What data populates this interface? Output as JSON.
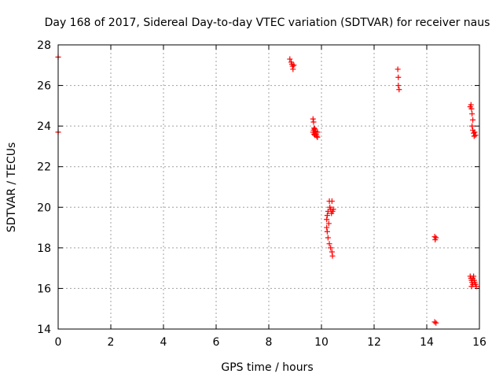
{
  "chart_data": {
    "type": "scatter",
    "title": "Day 168 of 2017, Sidereal Day-to-day VTEC variation (SDTVAR) for receiver naus",
    "xlabel": "GPS time / hours",
    "ylabel": "SDTVAR / TECUs",
    "xlim": [
      0,
      16
    ],
    "ylim": [
      14,
      28
    ],
    "xticks": [
      0,
      2,
      4,
      6,
      8,
      10,
      12,
      14,
      16
    ],
    "yticks": [
      14,
      16,
      18,
      20,
      22,
      24,
      26,
      28
    ],
    "grid": true,
    "marker": "+",
    "color": "#ff0000",
    "points": [
      [
        0.0,
        27.4
      ],
      [
        0.0,
        23.7
      ],
      [
        8.8,
        27.3
      ],
      [
        8.85,
        27.15
      ],
      [
        8.88,
        27.05
      ],
      [
        8.9,
        26.95
      ],
      [
        8.92,
        26.8
      ],
      [
        8.95,
        27.0
      ],
      [
        9.68,
        24.35
      ],
      [
        9.7,
        24.2
      ],
      [
        9.72,
        23.9
      ],
      [
        9.7,
        23.8
      ],
      [
        9.68,
        23.7
      ],
      [
        9.72,
        23.6
      ],
      [
        9.75,
        23.85
      ],
      [
        9.78,
        23.75
      ],
      [
        9.8,
        23.6
      ],
      [
        9.82,
        23.5
      ],
      [
        9.85,
        23.45
      ],
      [
        9.85,
        23.7
      ],
      [
        9.75,
        23.55
      ],
      [
        10.2,
        19.4
      ],
      [
        10.22,
        19.6
      ],
      [
        10.25,
        19.8
      ],
      [
        10.2,
        19.0
      ],
      [
        10.22,
        18.8
      ],
      [
        10.25,
        18.5
      ],
      [
        10.3,
        20.3
      ],
      [
        10.32,
        20.0
      ],
      [
        10.35,
        19.9
      ],
      [
        10.38,
        19.7
      ],
      [
        10.3,
        18.2
      ],
      [
        10.35,
        18.0
      ],
      [
        10.4,
        17.8
      ],
      [
        10.42,
        17.6
      ],
      [
        10.4,
        20.3
      ],
      [
        10.42,
        19.8
      ],
      [
        10.45,
        19.9
      ],
      [
        10.28,
        19.2
      ],
      [
        12.9,
        26.8
      ],
      [
        12.92,
        26.4
      ],
      [
        12.92,
        26.0
      ],
      [
        12.95,
        25.8
      ],
      [
        14.3,
        18.55
      ],
      [
        14.32,
        18.4
      ],
      [
        14.35,
        18.5
      ],
      [
        14.3,
        14.35
      ],
      [
        14.35,
        14.3
      ],
      [
        15.65,
        24.95
      ],
      [
        15.68,
        25.05
      ],
      [
        15.7,
        24.85
      ],
      [
        15.72,
        24.6
      ],
      [
        15.75,
        24.3
      ],
      [
        15.72,
        24.0
      ],
      [
        15.75,
        23.8
      ],
      [
        15.78,
        23.65
      ],
      [
        15.8,
        23.5
      ],
      [
        15.82,
        23.7
      ],
      [
        15.85,
        23.55
      ],
      [
        15.65,
        16.6
      ],
      [
        15.68,
        16.5
      ],
      [
        15.7,
        16.4
      ],
      [
        15.72,
        16.3
      ],
      [
        15.75,
        16.5
      ],
      [
        15.75,
        16.2
      ],
      [
        15.78,
        16.6
      ],
      [
        15.8,
        16.4
      ],
      [
        15.82,
        16.3
      ],
      [
        15.85,
        16.2
      ],
      [
        15.88,
        16.1
      ],
      [
        15.7,
        16.1
      ]
    ]
  }
}
